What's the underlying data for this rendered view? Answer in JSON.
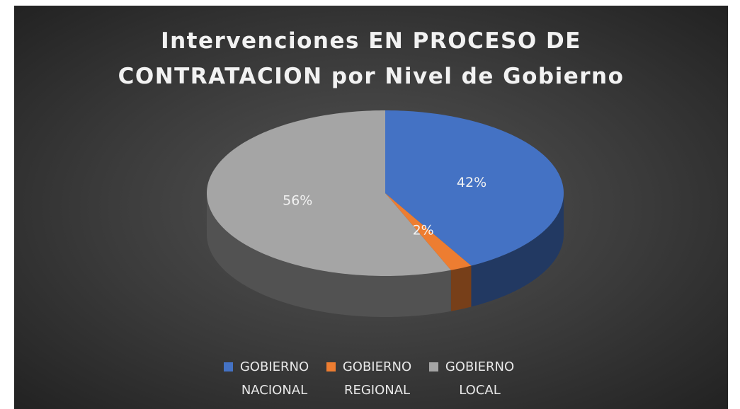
{
  "chart_data": {
    "type": "pie",
    "title": [
      "Intervenciones EN PROCESO DE",
      "CONTRATACION por Nivel de Gobierno"
    ],
    "categories": [
      "GOBIERNO NACIONAL",
      "GOBIERNO REGIONAL",
      "GOBIERNO LOCAL"
    ],
    "values": [
      42,
      2,
      56
    ],
    "value_labels": [
      "42%",
      "2%",
      "56%"
    ],
    "colors": [
      "#4472c4",
      "#ed7d31",
      "#a5a5a5"
    ],
    "legend": "bottom"
  }
}
